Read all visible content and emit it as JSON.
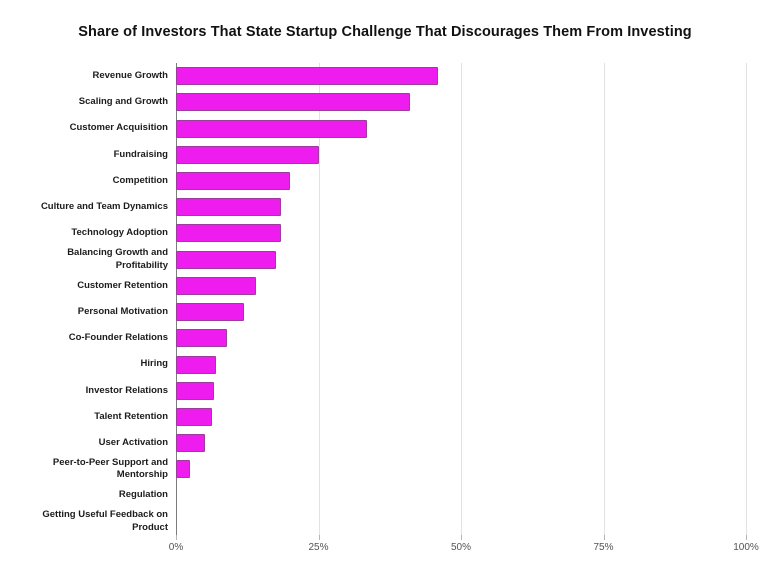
{
  "title": "Share of Investors That State Startup Challenge That Discourages Them From Investing",
  "chart_data": {
    "type": "bar",
    "orientation": "horizontal",
    "title": "Share of Investors That State Startup Challenge That Discourages Them From Investing",
    "categories": [
      "Revenue Growth",
      "Scaling and Growth",
      "Customer Acquisition",
      "Fundraising",
      "Competition",
      "Culture and Team Dynamics",
      "Technology Adoption",
      "Balancing Growth and Profitability",
      "Customer Retention",
      "Personal Motivation",
      "Co-Founder Relations",
      "Hiring",
      "Investor Relations",
      "Talent Retention",
      "User Activation",
      "Peer-to-Peer Support and Mentorship",
      "Regulation",
      "Getting Useful Feedback on Product"
    ],
    "values": [
      46,
      41,
      33.5,
      25,
      20,
      18.5,
      18.5,
      17.5,
      14,
      12,
      9,
      7,
      6.7,
      6.4,
      5,
      2.4,
      0,
      0
    ],
    "xlabel": "",
    "ylabel": "",
    "xlim": [
      0,
      100
    ],
    "x_ticks": [
      {
        "label": "0%",
        "value": 0
      },
      {
        "label": "25%",
        "value": 25
      },
      {
        "label": "50%",
        "value": 50
      },
      {
        "label": "75%",
        "value": 75
      },
      {
        "label": "100%",
        "value": 100
      }
    ],
    "grid": true,
    "legend": false,
    "colors": {
      "bar_fill": "#EE1CEE",
      "bar_border": "#9E3C9E",
      "gridline": "#e2e2e2",
      "axis_line": "#7d7d7d",
      "label_text": "#1c1c1c",
      "tick_text": "#545454",
      "background": "#ffffff"
    }
  }
}
